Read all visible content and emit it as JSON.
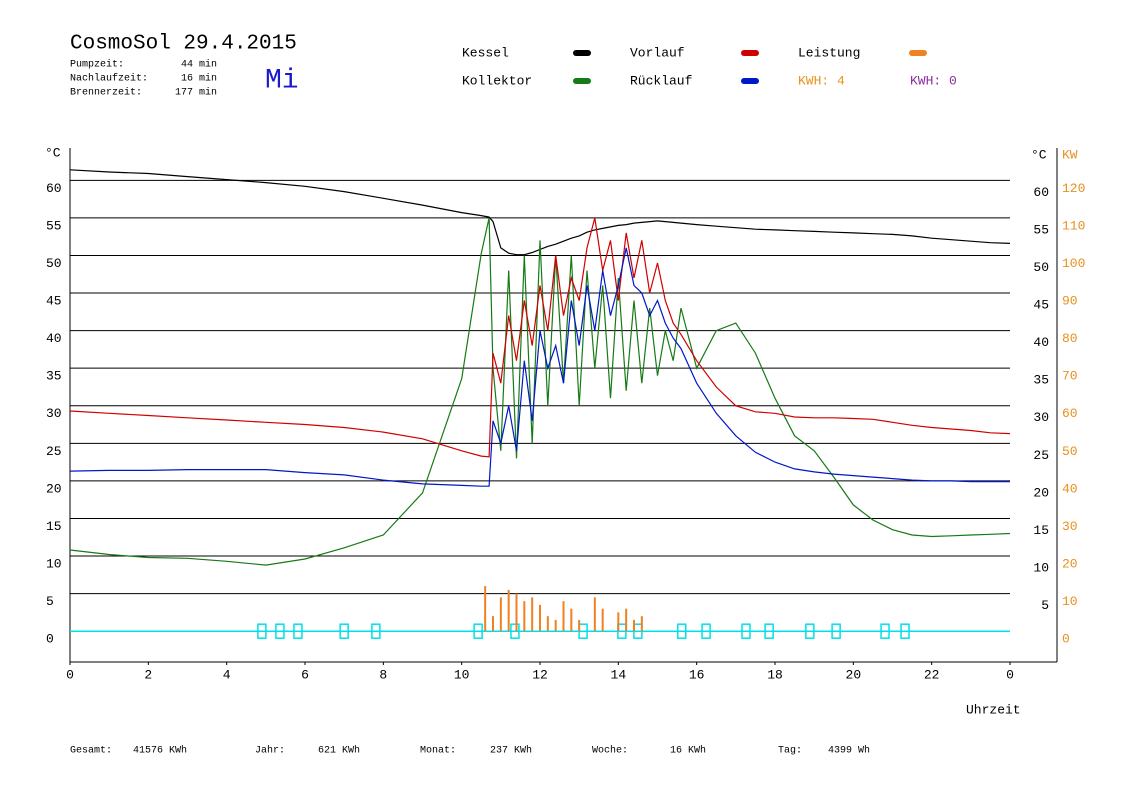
{
  "chart_data": {
    "type": "line",
    "title": "CosmoSol 29.4.2015",
    "weekday": "Mi",
    "info": [
      {
        "label": "Pumpzeit:",
        "value": "44 min"
      },
      {
        "label": "Nachlaufzeit:",
        "value": "16 min"
      },
      {
        "label": "Brennerzeit:",
        "value": "177 min"
      }
    ],
    "kwh_labels": [
      {
        "text": "KWH: 4",
        "color": "#e8901c"
      },
      {
        "text": "KWH: 0",
        "color": "#8a2c9e"
      }
    ],
    "y_unit": "°C",
    "y2_unit": "KW",
    "x_label": "Uhrzeit",
    "totals": [
      {
        "label": "Gesamt:",
        "value": "41576 KWh"
      },
      {
        "label": "Jahr:",
        "value": "621 KWh"
      },
      {
        "label": "Monat:",
        "value": "237 KWh"
      },
      {
        "label": "Woche:",
        "value": "16 KWh"
      },
      {
        "label": "Tag:",
        "value": "4399 Wh"
      }
    ],
    "xlim": [
      0,
      25.2
    ],
    "xticks": [
      0,
      2,
      4,
      6,
      8,
      10,
      12,
      14,
      16,
      18,
      20,
      22,
      {
        "value": 24,
        "label": "0"
      }
    ],
    "ylim": [
      -4.1,
      64.3
    ],
    "yticks": [
      0,
      5,
      10,
      15,
      20,
      25,
      30,
      35,
      40,
      45,
      50,
      55,
      60
    ],
    "y_right_ticks": [
      5,
      10,
      15,
      20,
      25,
      30,
      35,
      40,
      45,
      50,
      55,
      60
    ],
    "y2lim": [
      -8.2,
      128.6
    ],
    "y2ticks": [
      0,
      10,
      20,
      30,
      40,
      50,
      60,
      70,
      80,
      90,
      100,
      110,
      120
    ],
    "y2_color": "#e8901c",
    "grid": true,
    "marker_color": "#00e0e8",
    "markers": [
      4.9,
      5.36,
      5.82,
      7.0,
      7.81,
      10.42,
      11.36,
      13.1,
      14.09,
      14.5,
      15.62,
      16.24,
      17.26,
      17.85,
      18.89,
      19.56,
      20.81,
      21.32
    ],
    "x": [
      0,
      1,
      2,
      3,
      4,
      5,
      6,
      7,
      8,
      9,
      10,
      10.5,
      10.7,
      10.8,
      11.0,
      11.2,
      11.4,
      11.6,
      11.8,
      12.0,
      12.2,
      12.4,
      12.6,
      12.8,
      13.0,
      13.2,
      13.4,
      13.6,
      13.8,
      14.0,
      14.2,
      14.4,
      14.6,
      14.8,
      15.0,
      15.2,
      15.4,
      15.6,
      16,
      16.5,
      17,
      17.5,
      18,
      18.5,
      19,
      19.5,
      20,
      20.5,
      21,
      21.5,
      22,
      22.5,
      23,
      23.5,
      24
    ],
    "series": [
      {
        "name": "Kessel",
        "color": "#000000",
        "values": [
          61.4,
          61.1,
          60.9,
          60.5,
          60.1,
          59.7,
          59.2,
          58.5,
          57.6,
          56.7,
          55.7,
          55.3,
          55.1,
          54.5,
          51.0,
          50.3,
          50.1,
          50.1,
          50.4,
          50.8,
          51.2,
          51.5,
          51.9,
          52.3,
          52.6,
          53.1,
          53.4,
          53.6,
          53.8,
          54.0,
          54.1,
          54.3,
          54.4,
          54.5,
          54.6,
          54.5,
          54.4,
          54.3,
          54.1,
          53.9,
          53.7,
          53.5,
          53.4,
          53.3,
          53.2,
          53.1,
          53.0,
          52.9,
          52.8,
          52.6,
          52.3,
          52.1,
          51.9,
          51.7,
          51.6
        ]
      },
      {
        "name": "Kollektor",
        "color": "#167a16",
        "values": [
          10.8,
          10.2,
          9.8,
          9.7,
          9.3,
          8.8,
          9.6,
          11.1,
          12.8,
          18.4,
          33.6,
          50.3,
          55,
          35,
          24,
          48,
          23,
          50,
          25,
          52,
          30,
          50,
          33,
          50,
          30,
          48,
          35,
          46,
          31,
          47,
          32,
          44,
          33,
          43,
          34,
          40,
          36,
          43,
          35,
          40,
          41,
          37,
          31,
          26,
          24,
          20.5,
          16.8,
          14.8,
          13.5,
          12.8,
          12.6,
          12.7,
          12.8,
          12.9,
          13.0
        ]
      },
      {
        "name": "Vorlauf",
        "color": "#d00000",
        "values": [
          29.3,
          29.0,
          28.7,
          28.4,
          28.1,
          27.8,
          27.5,
          27.1,
          26.5,
          25.6,
          24.0,
          23.3,
          23.2,
          37,
          33,
          42,
          36,
          44,
          38,
          46,
          40,
          50,
          42,
          47,
          44,
          51,
          55,
          48,
          52,
          44,
          53,
          47,
          52,
          45,
          49,
          44,
          41,
          39.5,
          36,
          32.5,
          30,
          29.2,
          29.0,
          28.5,
          28.4,
          28.4,
          28.3,
          28.2,
          27.8,
          27.4,
          27.1,
          26.9,
          26.7,
          26.4,
          26.3
        ]
      },
      {
        "name": "Rücklauf",
        "color": "#0018c8",
        "values": [
          21.3,
          21.4,
          21.4,
          21.5,
          21.5,
          21.5,
          21.1,
          20.8,
          20.1,
          19.6,
          19.4,
          19.3,
          19.3,
          28,
          25,
          30,
          24,
          36,
          28,
          40,
          35,
          38,
          33,
          44,
          38,
          46,
          40,
          48,
          42,
          46,
          51,
          46,
          45,
          42,
          44,
          41,
          39,
          37.6,
          33,
          29,
          26,
          23.8,
          22.5,
          21.6,
          21.2,
          20.9,
          20.7,
          20.5,
          20.3,
          20.1,
          20.0,
          20.0,
          19.9,
          19.9,
          19.9
        ]
      },
      {
        "name": "Leistung",
        "color": "#f08020",
        "axis": "y2",
        "x": [
          10.6,
          10.8,
          11.0,
          11.2,
          11.4,
          11.6,
          11.8,
          12.0,
          12.2,
          12.4,
          12.6,
          12.8,
          13.0,
          13.4,
          13.6,
          14.0,
          14.2,
          14.4,
          14.6
        ],
        "values": [
          12,
          4,
          9,
          11,
          10,
          8,
          9,
          7,
          4,
          3,
          8,
          6,
          3,
          9,
          6,
          5,
          6,
          3,
          4
        ]
      }
    ]
  }
}
